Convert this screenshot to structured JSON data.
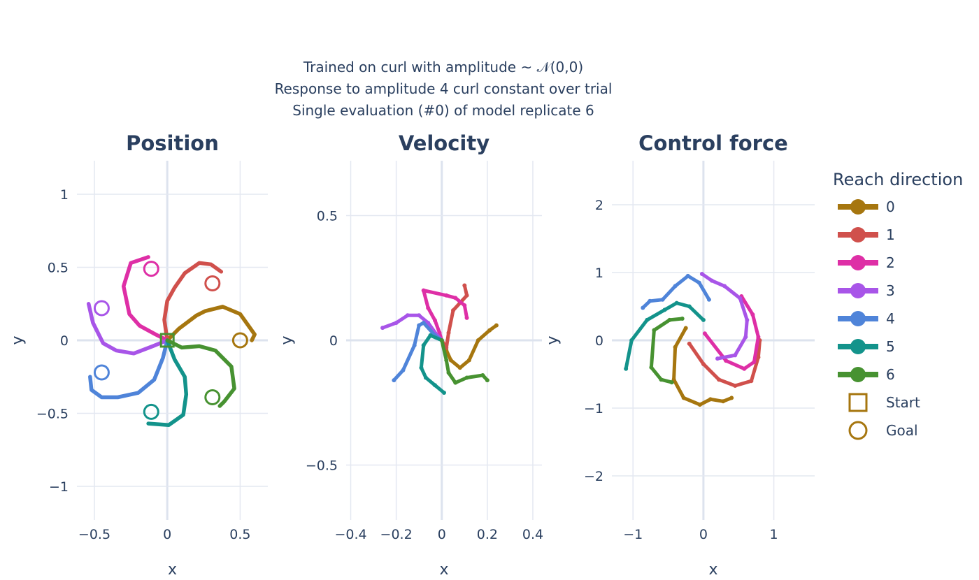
{
  "figure_title": [
    "Trained on curl with amplitude ~ 𝒩(0,0)",
    "Response to amplitude 4 curl constant over trial",
    "Single evaluation (#0) of model replicate 6"
  ],
  "legend": {
    "title": "Reach direction",
    "items": [
      {
        "label": "0",
        "color": "#a6760f"
      },
      {
        "label": "1",
        "color": "#d0504c"
      },
      {
        "label": "2",
        "color": "#de2fa6"
      },
      {
        "label": "3",
        "color": "#a855e8"
      },
      {
        "label": "4",
        "color": "#4f84d9"
      },
      {
        "label": "5",
        "color": "#13938b"
      },
      {
        "label": "6",
        "color": "#479231"
      }
    ],
    "start_label": "Start",
    "goal_label": "Goal"
  },
  "chart_data": [
    {
      "type": "line",
      "title": "Position",
      "xlabel": "x",
      "ylabel": "y",
      "xlim": [
        -0.62,
        0.69
      ],
      "ylim": [
        -1.23,
        1.23
      ],
      "xticks": [
        -0.5,
        0,
        0.5
      ],
      "xtick_labels": [
        "−0.5",
        "0",
        "0.5"
      ],
      "yticks": [
        -1,
        -0.5,
        0,
        0.5,
        1
      ],
      "ytick_labels": [
        "−1",
        "−0.5",
        "0",
        "0.5",
        "1"
      ],
      "start": [
        0,
        0
      ],
      "goals": [
        [
          0.5,
          0
        ],
        [
          0.31,
          0.39
        ],
        [
          -0.11,
          0.49
        ],
        [
          -0.45,
          0.22
        ],
        [
          -0.45,
          -0.22
        ],
        [
          -0.11,
          -0.49
        ],
        [
          0.31,
          -0.39
        ]
      ],
      "series": [
        {
          "name": "0",
          "x": [
            0,
            0.08,
            0.2,
            0.26,
            0.38,
            0.5,
            0.6,
            0.58
          ],
          "y": [
            0,
            0.08,
            0.17,
            0.2,
            0.23,
            0.18,
            0.04,
            0.0
          ]
        },
        {
          "name": "1",
          "x": [
            0,
            -0.02,
            0.0,
            0.05,
            0.12,
            0.22,
            0.3,
            0.37
          ],
          "y": [
            0,
            0.14,
            0.27,
            0.36,
            0.46,
            0.53,
            0.52,
            0.47
          ]
        },
        {
          "name": "2",
          "x": [
            0,
            -0.08,
            -0.19,
            -0.26,
            -0.3,
            -0.25,
            -0.13
          ],
          "y": [
            0,
            0.04,
            0.1,
            0.18,
            0.37,
            0.53,
            0.57
          ]
        },
        {
          "name": "3",
          "x": [
            0,
            -0.1,
            -0.23,
            -0.35,
            -0.44,
            -0.51,
            -0.54
          ],
          "y": [
            0,
            -0.04,
            -0.09,
            -0.07,
            -0.02,
            0.12,
            0.25
          ]
        },
        {
          "name": "4",
          "x": [
            0,
            -0.03,
            -0.09,
            -0.2,
            -0.34,
            -0.45,
            -0.52,
            -0.53
          ],
          "y": [
            0,
            -0.12,
            -0.27,
            -0.36,
            -0.39,
            -0.39,
            -0.34,
            -0.25
          ]
        },
        {
          "name": "5",
          "x": [
            0,
            0.05,
            0.12,
            0.13,
            0.11,
            0.01,
            -0.13
          ],
          "y": [
            0,
            -0.13,
            -0.25,
            -0.37,
            -0.51,
            -0.58,
            -0.57
          ]
        },
        {
          "name": "6",
          "x": [
            0,
            0.1,
            0.22,
            0.33,
            0.44,
            0.46,
            0.39,
            0.36
          ],
          "y": [
            0,
            -0.05,
            -0.04,
            -0.07,
            -0.18,
            -0.33,
            -0.42,
            -0.45
          ]
        }
      ]
    },
    {
      "type": "line",
      "title": "Velocity",
      "xlabel": "x",
      "ylabel": "y",
      "xlim": [
        -0.42,
        0.44
      ],
      "ylim": [
        -0.72,
        0.72
      ],
      "xticks": [
        -0.4,
        -0.2,
        0,
        0.2,
        0.4
      ],
      "xtick_labels": [
        "−0.4",
        "−0.2",
        "0",
        "0.2",
        "0.4"
      ],
      "yticks": [
        -0.5,
        0,
        0.5
      ],
      "ytick_labels": [
        "−0.5",
        "0",
        "0.5"
      ],
      "series": [
        {
          "name": "0",
          "x": [
            0,
            0.02,
            0.04,
            0.08,
            0.12,
            0.16,
            0.21,
            0.24
          ],
          "y": [
            0,
            -0.04,
            -0.08,
            -0.11,
            -0.08,
            0.0,
            0.04,
            0.06
          ]
        },
        {
          "name": "1",
          "x": [
            0,
            0.02,
            0.03,
            0.05,
            0.08,
            0.11,
            0.1
          ],
          "y": [
            0,
            -0.03,
            0.03,
            0.12,
            0.15,
            0.18,
            0.22
          ]
        },
        {
          "name": "2",
          "x": [
            0,
            -0.01,
            -0.03,
            -0.06,
            -0.08,
            0.02,
            0.06,
            0.1,
            0.11
          ],
          "y": [
            0,
            0.03,
            0.08,
            0.13,
            0.2,
            0.18,
            0.17,
            0.14,
            0.09
          ]
        },
        {
          "name": "3",
          "x": [
            0,
            -0.02,
            -0.06,
            -0.1,
            -0.15,
            -0.2,
            -0.26
          ],
          "y": [
            0,
            0.02,
            0.07,
            0.1,
            0.1,
            0.07,
            0.05
          ]
        },
        {
          "name": "4",
          "x": [
            0,
            -0.03,
            -0.08,
            -0.1,
            -0.12,
            -0.17,
            -0.21
          ],
          "y": [
            0,
            0.02,
            0.07,
            0.06,
            -0.02,
            -0.12,
            -0.16
          ]
        },
        {
          "name": "5",
          "x": [
            0,
            -0.05,
            -0.08,
            -0.09,
            -0.07,
            -0.03,
            0.01
          ],
          "y": [
            0,
            0.02,
            -0.02,
            -0.11,
            -0.15,
            -0.18,
            -0.21
          ]
        },
        {
          "name": "6",
          "x": [
            0,
            0.02,
            0.03,
            0.06,
            0.11,
            0.18,
            0.2
          ],
          "y": [
            0,
            -0.08,
            -0.13,
            -0.17,
            -0.15,
            -0.14,
            -0.16
          ]
        }
      ]
    },
    {
      "type": "line",
      "title": "Control force",
      "xlabel": "x",
      "ylabel": "y",
      "xlim": [
        -1.3,
        1.58
      ],
      "ylim": [
        -2.65,
        2.65
      ],
      "xticks": [
        -1,
        0,
        1
      ],
      "xtick_labels": [
        "−1",
        "0",
        "1"
      ],
      "yticks": [
        -2,
        -1,
        0,
        1,
        2
      ],
      "ytick_labels": [
        "−2",
        "−1",
        "0",
        "1",
        "2"
      ],
      "series": [
        {
          "name": "0",
          "x": [
            -0.25,
            -0.4,
            -0.42,
            -0.28,
            -0.05,
            0.1,
            0.28,
            0.4
          ],
          "y": [
            0.18,
            -0.1,
            -0.58,
            -0.85,
            -0.95,
            -0.87,
            -0.9,
            -0.85
          ]
        },
        {
          "name": "1",
          "x": [
            -0.2,
            0.0,
            0.22,
            0.45,
            0.68,
            0.78,
            0.8
          ],
          "y": [
            -0.05,
            -0.35,
            -0.58,
            -0.67,
            -0.6,
            -0.25,
            0.0
          ]
        },
        {
          "name": "2",
          "x": [
            0.02,
            0.32,
            0.58,
            0.72,
            0.78,
            0.7,
            0.54
          ],
          "y": [
            0.1,
            -0.3,
            -0.42,
            -0.32,
            0.05,
            0.38,
            0.65
          ]
        },
        {
          "name": "3",
          "x": [
            0.2,
            0.45,
            0.6,
            0.62,
            0.52,
            0.3,
            0.12,
            -0.02
          ],
          "y": [
            -0.27,
            -0.22,
            0.05,
            0.3,
            0.62,
            0.8,
            0.88,
            0.98
          ]
        },
        {
          "name": "4",
          "x": [
            0.08,
            -0.06,
            -0.22,
            -0.4,
            -0.58,
            -0.76,
            -0.86
          ],
          "y": [
            0.6,
            0.85,
            0.95,
            0.8,
            0.6,
            0.58,
            0.48
          ]
        },
        {
          "name": "5",
          "x": [
            0.0,
            -0.2,
            -0.38,
            -0.55,
            -0.8,
            -1.02,
            -1.1
          ],
          "y": [
            0.3,
            0.5,
            0.55,
            0.45,
            0.3,
            0.0,
            -0.42
          ]
        },
        {
          "name": "6",
          "x": [
            -0.3,
            -0.48,
            -0.7,
            -0.74,
            -0.6,
            -0.45
          ],
          "y": [
            0.32,
            0.3,
            0.15,
            -0.4,
            -0.58,
            -0.62
          ]
        }
      ]
    }
  ]
}
